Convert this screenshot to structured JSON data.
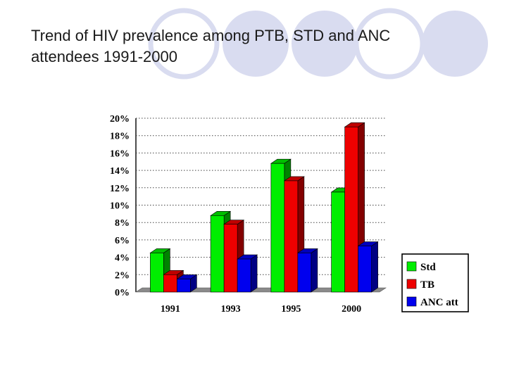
{
  "slide": {
    "title": "Trend of HIV prevalence among PTB, STD and ANC attendees 1991-2000"
  },
  "colors": {
    "background": "#ffffff",
    "decor_circles": "#d9dcf0",
    "Std": "#00ee00",
    "TB": "#ee0000",
    "ANC att": "#0000ee"
  },
  "chart_data": {
    "type": "bar",
    "categories": [
      "1991",
      "1993",
      "1995",
      "2000"
    ],
    "series": [
      {
        "name": "Std",
        "values": [
          4.5,
          8.8,
          14.8,
          11.5
        ]
      },
      {
        "name": "TB",
        "values": [
          2.0,
          7.8,
          12.8,
          19.0
        ]
      },
      {
        "name": "ANC att",
        "values": [
          1.5,
          3.8,
          4.5,
          5.3
        ]
      }
    ],
    "y_tick_labels": [
      "0%",
      "2%",
      "4%",
      "6%",
      "8%",
      "10%",
      "12%",
      "14%",
      "16%",
      "18%",
      "20%"
    ],
    "ylim": [
      0,
      20
    ],
    "y_unit": "%",
    "grid": "horizontal dotted",
    "style": "3d",
    "legend_position": "right-bottom",
    "title": "",
    "xlabel": "",
    "ylabel": ""
  }
}
